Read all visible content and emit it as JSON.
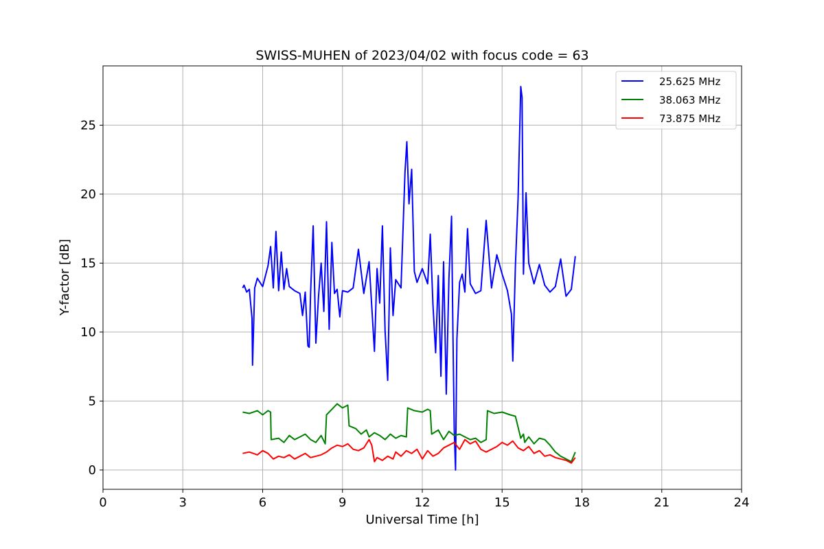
{
  "chart_data": {
    "type": "line",
    "title": "SWISS-MUHEN of 2023/04/02 with focus code = 63",
    "xlabel": "Universal Time [h]",
    "ylabel": "Y-factor [dB]",
    "xlim": [
      0,
      24
    ],
    "ylim": [
      -1.4,
      29.3
    ],
    "xticks": [
      0,
      3,
      6,
      9,
      12,
      15,
      18,
      21,
      24
    ],
    "yticks": [
      0,
      5,
      10,
      15,
      20,
      25
    ],
    "grid": true,
    "legend_position": "top-right",
    "series": [
      {
        "name": "25.625 MHz",
        "color": "#0000ff",
        "x": [
          5.25,
          5.3,
          5.4,
          5.5,
          5.6,
          5.62,
          5.7,
          5.8,
          6.0,
          6.2,
          6.3,
          6.4,
          6.5,
          6.6,
          6.7,
          6.8,
          6.9,
          7.0,
          7.2,
          7.4,
          7.5,
          7.6,
          7.7,
          7.75,
          7.8,
          7.9,
          8.0,
          8.1,
          8.2,
          8.3,
          8.4,
          8.5,
          8.6,
          8.7,
          8.8,
          8.9,
          9.0,
          9.2,
          9.4,
          9.6,
          9.8,
          10.0,
          10.2,
          10.3,
          10.4,
          10.5,
          10.6,
          10.7,
          10.8,
          10.9,
          11.0,
          11.2,
          11.35,
          11.42,
          11.5,
          11.6,
          11.7,
          11.8,
          12.0,
          12.2,
          12.3,
          12.4,
          12.5,
          12.6,
          12.7,
          12.8,
          12.9,
          13.0,
          13.1,
          13.15,
          13.2,
          13.25,
          13.3,
          13.4,
          13.5,
          13.6,
          13.7,
          13.8,
          14.0,
          14.2,
          14.4,
          14.6,
          14.8,
          15.0,
          15.2,
          15.35,
          15.4,
          15.5,
          15.6,
          15.7,
          15.75,
          15.8,
          15.9,
          16.0,
          16.2,
          16.4,
          16.6,
          16.8,
          17.0,
          17.2,
          17.4,
          17.6,
          17.75
        ],
        "y": [
          13.2,
          13.4,
          12.9,
          13.1,
          11.0,
          7.6,
          13.2,
          13.9,
          13.3,
          14.8,
          16.2,
          13.2,
          17.3,
          13.0,
          15.8,
          13.1,
          14.6,
          13.3,
          13.0,
          12.8,
          11.2,
          12.9,
          9.0,
          8.9,
          12.8,
          17.7,
          9.2,
          12.6,
          15.0,
          11.5,
          18.0,
          10.2,
          16.5,
          12.8,
          13.1,
          11.1,
          13.0,
          12.9,
          13.2,
          16.0,
          12.8,
          15.1,
          8.6,
          14.6,
          12.1,
          17.7,
          10.1,
          6.5,
          16.1,
          11.2,
          13.8,
          13.2,
          21.6,
          23.8,
          19.3,
          21.8,
          14.4,
          13.6,
          14.6,
          13.5,
          17.1,
          12.0,
          8.5,
          14.1,
          6.8,
          15.1,
          5.5,
          13.9,
          18.4,
          10.0,
          3.0,
          0.0,
          9.5,
          13.6,
          14.2,
          12.9,
          17.5,
          13.5,
          12.8,
          13.0,
          18.1,
          13.2,
          15.6,
          14.2,
          13.0,
          11.3,
          7.9,
          14.8,
          19.7,
          27.8,
          27.0,
          14.2,
          20.1,
          15.0,
          13.5,
          14.9,
          13.4,
          12.9,
          13.3,
          15.3,
          12.6,
          13.1,
          15.5
        ]
      },
      {
        "name": "38.063 MHz",
        "color": "#008000",
        "x": [
          5.25,
          5.5,
          5.8,
          6.0,
          6.2,
          6.3,
          6.32,
          6.6,
          6.8,
          7.0,
          7.2,
          7.4,
          7.6,
          7.8,
          8.0,
          8.2,
          8.35,
          8.4,
          8.6,
          8.8,
          9.0,
          9.2,
          9.25,
          9.5,
          9.7,
          9.9,
          10.0,
          10.2,
          10.4,
          10.6,
          10.8,
          11.0,
          11.2,
          11.4,
          11.45,
          11.7,
          12.0,
          12.2,
          12.3,
          12.35,
          12.6,
          12.8,
          13.0,
          13.2,
          13.4,
          13.6,
          13.8,
          14.0,
          14.2,
          14.4,
          14.45,
          14.7,
          15.0,
          15.3,
          15.5,
          15.7,
          15.8,
          15.85,
          16.0,
          16.2,
          16.4,
          16.6,
          16.8,
          17.0,
          17.2,
          17.4,
          17.6,
          17.75
        ],
        "y": [
          4.2,
          4.1,
          4.3,
          4.0,
          4.3,
          4.2,
          2.2,
          2.3,
          2.0,
          2.5,
          2.2,
          2.4,
          2.6,
          2.2,
          2.0,
          2.5,
          1.9,
          4.0,
          4.4,
          4.8,
          4.5,
          4.7,
          3.2,
          3.0,
          2.6,
          2.9,
          2.4,
          2.7,
          2.5,
          2.2,
          2.6,
          2.3,
          2.5,
          2.4,
          4.5,
          4.3,
          4.2,
          4.4,
          4.3,
          2.6,
          2.9,
          2.2,
          2.8,
          2.5,
          2.6,
          2.4,
          2.2,
          2.3,
          2.0,
          2.2,
          4.3,
          4.1,
          4.2,
          4.0,
          3.9,
          2.3,
          2.6,
          2.0,
          2.4,
          1.9,
          2.3,
          2.2,
          1.8,
          1.3,
          1.0,
          0.8,
          0.6,
          1.3
        ]
      },
      {
        "name": "73.875 MHz",
        "color": "#ff0000",
        "x": [
          5.25,
          5.5,
          5.8,
          6.0,
          6.2,
          6.4,
          6.6,
          6.8,
          7.0,
          7.2,
          7.4,
          7.6,
          7.8,
          8.0,
          8.2,
          8.4,
          8.6,
          8.8,
          9.0,
          9.2,
          9.4,
          9.6,
          9.8,
          10.0,
          10.1,
          10.2,
          10.3,
          10.5,
          10.7,
          10.9,
          11.0,
          11.2,
          11.4,
          11.6,
          11.8,
          12.0,
          12.2,
          12.4,
          12.6,
          12.8,
          13.0,
          13.2,
          13.4,
          13.6,
          13.8,
          14.0,
          14.2,
          14.4,
          14.6,
          14.8,
          15.0,
          15.2,
          15.4,
          15.6,
          15.8,
          16.0,
          16.2,
          16.4,
          16.6,
          16.8,
          17.0,
          17.2,
          17.4,
          17.6,
          17.75
        ],
        "y": [
          1.2,
          1.3,
          1.1,
          1.4,
          1.2,
          0.8,
          1.0,
          0.9,
          1.1,
          0.8,
          1.0,
          1.2,
          0.9,
          1.0,
          1.1,
          1.3,
          1.6,
          1.8,
          1.7,
          1.9,
          1.5,
          1.4,
          1.6,
          2.2,
          1.8,
          0.6,
          0.9,
          0.7,
          1.0,
          0.8,
          1.3,
          1.0,
          1.4,
          1.2,
          1.5,
          0.8,
          1.4,
          1.0,
          1.2,
          1.6,
          1.8,
          2.0,
          1.5,
          2.2,
          1.9,
          2.1,
          1.5,
          1.3,
          1.5,
          1.7,
          2.0,
          1.8,
          2.1,
          1.6,
          1.4,
          1.7,
          1.2,
          1.4,
          1.0,
          1.1,
          0.9,
          0.8,
          0.7,
          0.5,
          0.9
        ]
      }
    ]
  }
}
